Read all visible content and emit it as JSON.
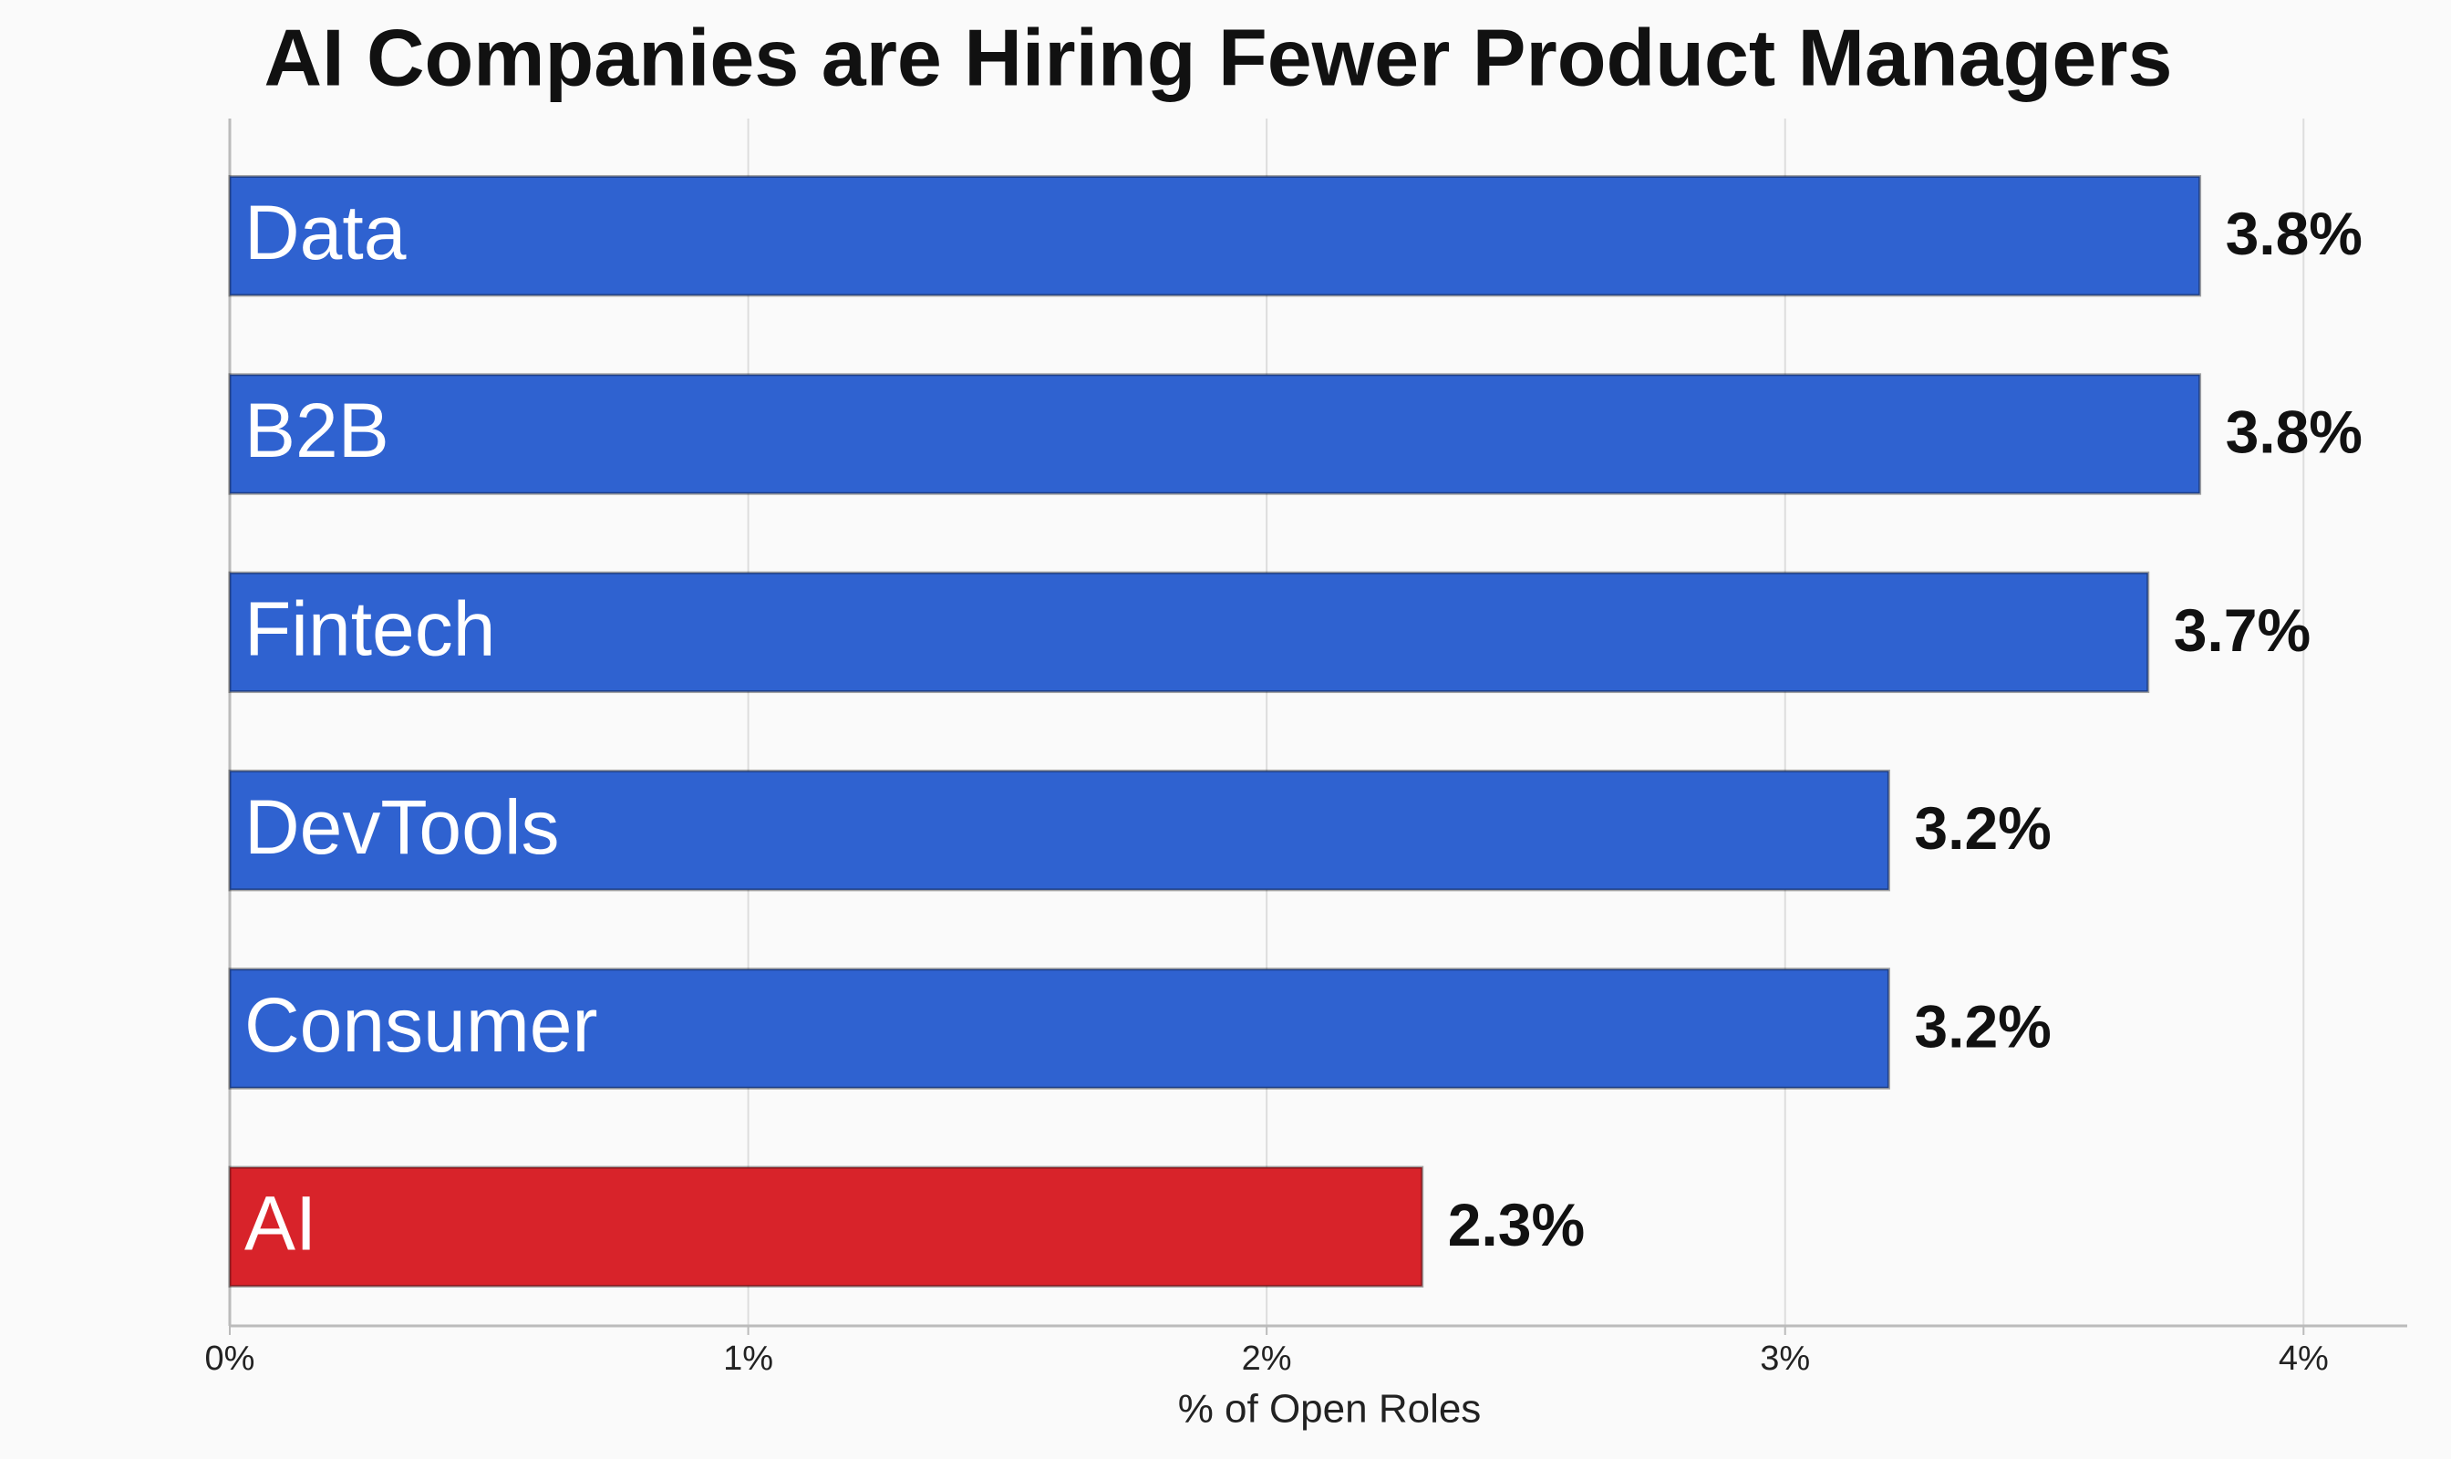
{
  "chart_data": {
    "type": "bar",
    "orientation": "horizontal",
    "title": "AI Companies are Hiring Fewer Product Managers",
    "x_label": "% of Open Roles",
    "categories": [
      "Data",
      "B2B",
      "Fintech",
      "DevTools",
      "Consumer",
      "AI"
    ],
    "values": [
      3.8,
      3.8,
      3.7,
      3.2,
      3.2,
      2.3
    ],
    "value_labels": [
      "3.8%",
      "3.8%",
      "3.7%",
      "3.2%",
      "3.2%",
      "2.3%"
    ],
    "colors": [
      "#2f62d0",
      "#2f62d0",
      "#2f62d0",
      "#2f62d0",
      "#2f62d0",
      "#d8232a"
    ],
    "xlim": [
      0,
      4.2
    ],
    "xticks": [
      {
        "value": 0,
        "label": "0%"
      },
      {
        "value": 1,
        "label": "1%"
      },
      {
        "value": 2,
        "label": "2%"
      },
      {
        "value": 3,
        "label": "3%"
      },
      {
        "value": 4,
        "label": "4%"
      }
    ],
    "grid": true
  }
}
